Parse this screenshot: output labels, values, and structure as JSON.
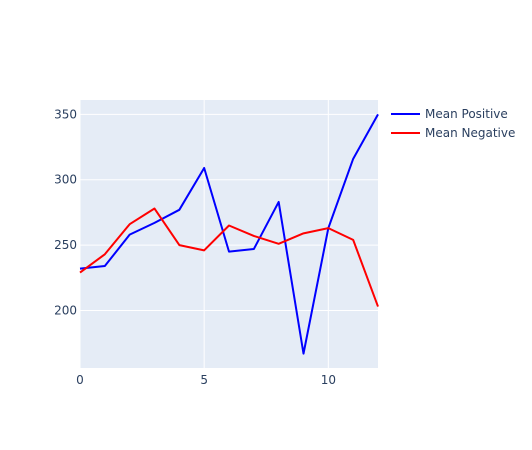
{
  "chart_data": {
    "type": "line",
    "x": [
      0,
      1,
      2,
      3,
      4,
      5,
      6,
      7,
      8,
      9,
      10,
      11,
      12
    ],
    "series": [
      {
        "name": "Mean Positive",
        "color": "#0000ff",
        "values": [
          232,
          234,
          258,
          267,
          277,
          309,
          245,
          247,
          283,
          167,
          263,
          316,
          350
        ]
      },
      {
        "name": "Mean Negative",
        "color": "#ff0000",
        "values": [
          229,
          243,
          266,
          278,
          250,
          246,
          265,
          257,
          251,
          259,
          263,
          254,
          203
        ]
      }
    ],
    "xlim": [
      0,
      12
    ],
    "ylim": [
      156,
      361
    ],
    "xticks": [
      0,
      5,
      10
    ],
    "yticks": [
      200,
      250,
      300,
      350
    ],
    "xtick_labels": [
      "0",
      "5",
      "10"
    ],
    "ytick_labels": [
      "200",
      "250",
      "300",
      "350"
    ],
    "grid": true,
    "legend_position": "top-right",
    "plot_background": "#e5ecf6",
    "grid_color": "#ffffff",
    "text_color": "#2a3f5f"
  }
}
